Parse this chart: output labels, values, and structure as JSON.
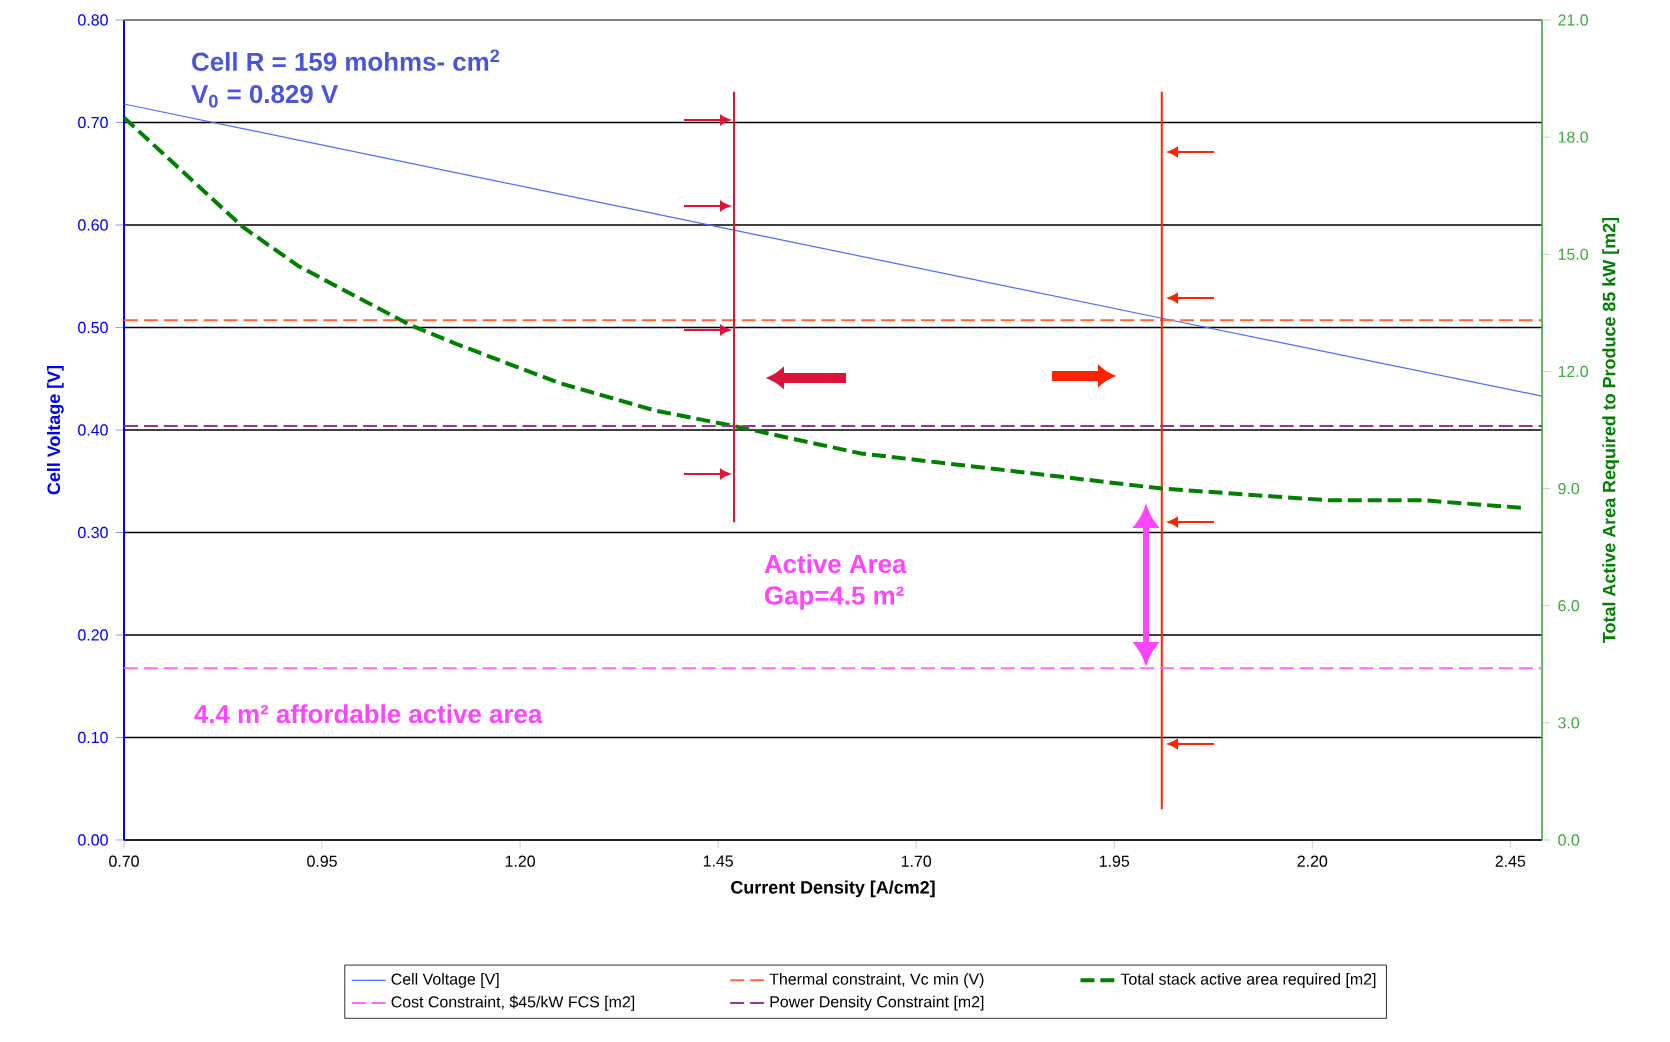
{
  "chart_data": {
    "type": "line",
    "xlabel": "Current Density [A/cm2]",
    "ylabel": "Cell Voltage [V]",
    "y2label": "Total Active Area Required to Produce 85 kW [m2]",
    "annotations": [
      "Cell R = 159 mohms- cm$^{2}$",
      "V$_{0}$ = 0.829 V",
      "Active Area",
      "Gap=4.5 m²",
      "4.4 m² affordable active area"
    ],
    "xlim": [
      0.7,
      2.49
    ],
    "ylim": [
      0,
      0.8
    ],
    "y2lim": [
      0,
      21
    ],
    "xticks": [
      {
        "value": 0.7,
        "label": "0.70"
      },
      {
        "value": 0.95,
        "label": "0.95"
      },
      {
        "value": 1.2,
        "label": "1.20"
      },
      {
        "value": 1.45,
        "label": "1.45"
      },
      {
        "value": 1.7,
        "label": "1.70"
      },
      {
        "value": 1.95,
        "label": "1.95"
      },
      {
        "value": 2.2,
        "label": "2.20"
      },
      {
        "value": 2.45,
        "label": "2.45"
      }
    ],
    "yticks": [
      {
        "value": 0,
        "label": "0.00"
      },
      {
        "value": 0.1,
        "label": "0.10"
      },
      {
        "value": 0.2,
        "label": "0.20"
      },
      {
        "value": 0.3,
        "label": "0.30"
      },
      {
        "value": 0.4,
        "label": "0.40"
      },
      {
        "value": 0.5,
        "label": "0.50"
      },
      {
        "value": 0.6,
        "label": "0.60"
      },
      {
        "value": 0.7,
        "label": "0.70"
      },
      {
        "value": 0.8,
        "label": "0.80"
      }
    ],
    "y2ticks": [
      {
        "value": 0,
        "label": "0.0"
      },
      {
        "value": 3,
        "label": "3.0"
      },
      {
        "value": 6,
        "label": "6.0"
      },
      {
        "value": 9,
        "label": "9.0"
      },
      {
        "value": 12,
        "label": "12.0"
      },
      {
        "value": 15,
        "label": "15.0"
      },
      {
        "value": 18,
        "label": "18.0"
      },
      {
        "value": 21,
        "label": "21.0"
      }
    ],
    "grid": "y",
    "legend": "bottom",
    "series": [
      {
        "name": "Cell Voltage [V]",
        "color": "#4d6bff",
        "x": [
          0.7,
          1.47,
          2.01,
          2.49
        ],
        "values": [
          0.718,
          0.595,
          0.509,
          0.433
        ],
        "line_style": "solid"
      },
      {
        "name": "Thermal constraint, Vc min (V)",
        "color": "#ff6633",
        "x": [
          0.7,
          2.49
        ],
        "values": [
          0.507,
          0.507
        ],
        "line_style": "dashed"
      },
      {
        "name": "Total stack active area required [m2]",
        "color": "#008000",
        "axis": "y2",
        "x": [
          0.7,
          0.85,
          0.92,
          1.06,
          1.12,
          1.25,
          1.37,
          1.47,
          1.63,
          1.8,
          2.01,
          2.22,
          2.34,
          2.47
        ],
        "values": [
          18.5,
          15.7,
          14.7,
          13.2,
          12.7,
          11.7,
          11.0,
          10.6,
          9.9,
          9.5,
          9.0,
          8.7,
          8.7,
          8.5
        ],
        "line_style": "dashed"
      },
      {
        "name": "Cost Constraint, $45/kW FCS  [m2]",
        "color": "#ff66ff",
        "axis": "y2",
        "x": [
          0.7,
          2.49
        ],
        "values": [
          4.4,
          4.4
        ],
        "line_style": "dashed"
      },
      {
        "name": "Power Density Constraint [m2]",
        "color": "#993399",
        "axis": "y2",
        "x": [
          0.7,
          2.49
        ],
        "values": [
          10.6,
          10.6
        ],
        "line_style": "dashed"
      },
      {
        "color": "#dc143c",
        "x": [
          1.47,
          1.47
        ],
        "values": [
          0.73,
          0.31
        ],
        "line_style": "solid"
      },
      {
        "color": "#ff2200",
        "x": [
          2.01,
          2.01
        ],
        "values": [
          0.73,
          0.03
        ],
        "line_style": "solid"
      }
    ]
  }
}
